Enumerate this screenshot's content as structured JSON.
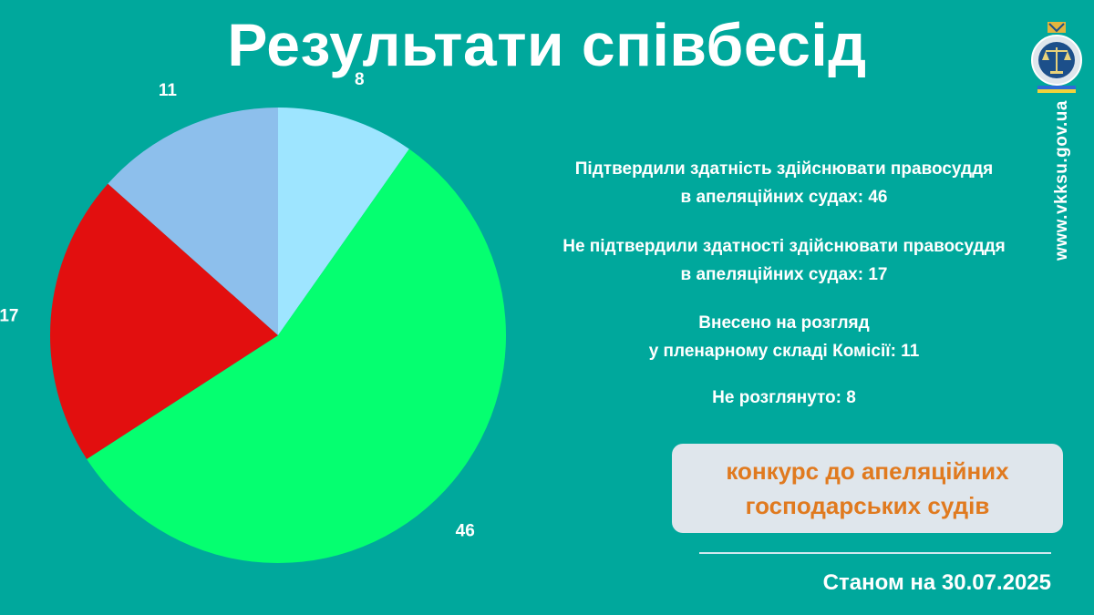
{
  "header": {
    "title": "Результати співбесід"
  },
  "chart_data": {
    "type": "pie",
    "slices": [
      {
        "label": "Не розглянуто",
        "value": 8,
        "color": "#9ee5ff"
      },
      {
        "label": "Підтвердили здатність здійснювати правосуддя в апеляційних судах",
        "value": 46,
        "color": "#05ff70"
      },
      {
        "label": "Не підтвердили здатності здійснювати правосуддя в апеляційних судах",
        "value": 17,
        "color": "#e20f0f"
      },
      {
        "label": "Внесено на розгляд у пленарному складі Комісії",
        "value": 11,
        "color": "#8dbfec"
      }
    ]
  },
  "legend": [
    {
      "line1": "Підтвердили здатність здійснювати правосуддя",
      "line2": "в апеляційних судах: 46"
    },
    {
      "line1": "Не підтвердили здатності здійснювати правосуддя",
      "line2": "в апеляційних судах: 17"
    },
    {
      "line1": "Внесено на розгляд",
      "line2": "у пленарному складі Комісії: 11"
    },
    {
      "line1": "Не розглянуто: 8",
      "line2": ""
    }
  ],
  "badge": {
    "line1": "конкурс до апеляційних",
    "line2": "господарських судів"
  },
  "footer": {
    "status": "Станом на 30.07.2025"
  },
  "sidebar": {
    "website": "www.vkksu.gov.ua"
  },
  "icons": {
    "emblem": "court-emblem-icon"
  }
}
